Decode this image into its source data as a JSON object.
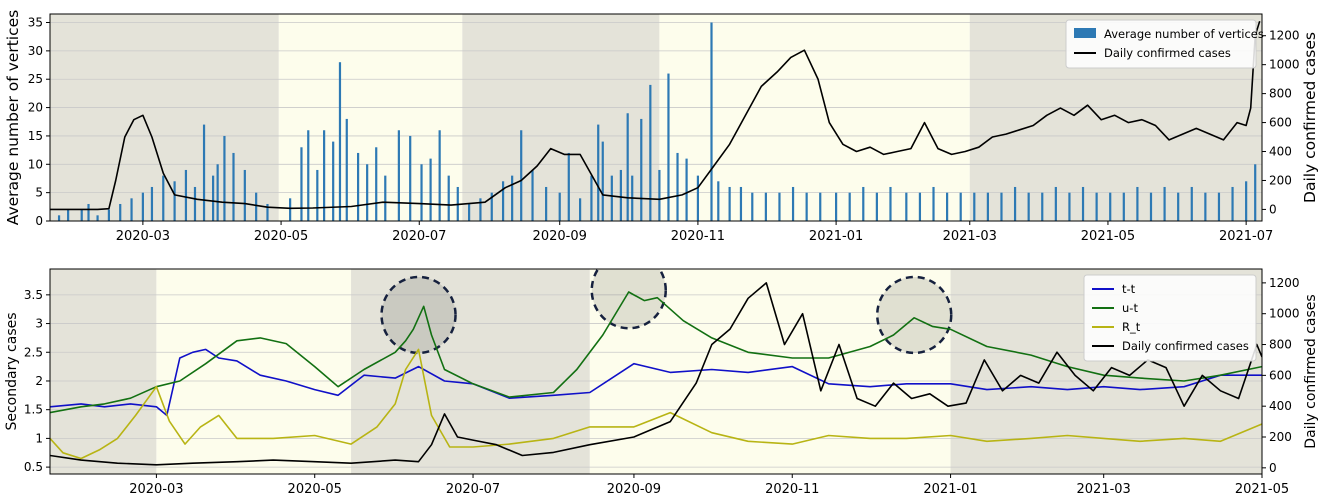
{
  "chart_data": [
    {
      "type": "bar",
      "title": "",
      "xlabel": "",
      "ylabel": "Average number of vertices",
      "ylabel_right": "Daily confirmed cases",
      "ylim": [
        0,
        36.5
      ],
      "ylim_right": [
        -80,
        1350
      ],
      "xlim": [
        "2020-01-20",
        "2021-07-08"
      ],
      "yticks": [
        0,
        5,
        10,
        15,
        20,
        25,
        30,
        35
      ],
      "yticks_right": [
        0,
        200,
        400,
        600,
        800,
        1000,
        1200
      ],
      "xticks": [
        "2020-03",
        "2020-05",
        "2020-07",
        "2020-09",
        "2020-11",
        "2021-01",
        "2021-03",
        "2021-05",
        "2021-07"
      ],
      "legend_position": "top-right",
      "shaded_periods": [
        {
          "start": "2020-01-20",
          "end": "2020-04-30",
          "color": "#e4e3d9"
        },
        {
          "start": "2020-04-30",
          "end": "2020-07-20",
          "color": "#fdfdec"
        },
        {
          "start": "2020-07-20",
          "end": "2020-10-15",
          "color": "#e4e3d9"
        },
        {
          "start": "2020-10-15",
          "end": "2021-03-01",
          "color": "#fdfdec"
        },
        {
          "start": "2021-03-01",
          "end": "2021-07-08",
          "color": "#e4e3d9"
        }
      ],
      "series": [
        {
          "name": "Average number of vertices",
          "kind": "bar",
          "color": "#2d79b4",
          "x": [
            "2020-01-24",
            "2020-01-28",
            "2020-02-03",
            "2020-02-06",
            "2020-02-10",
            "2020-02-15",
            "2020-02-20",
            "2020-02-25",
            "2020-03-01",
            "2020-03-05",
            "2020-03-10",
            "2020-03-15",
            "2020-03-20",
            "2020-03-24",
            "2020-03-28",
            "2020-04-01",
            "2020-04-03",
            "2020-04-06",
            "2020-04-10",
            "2020-04-15",
            "2020-04-20",
            "2020-04-25",
            "2020-05-05",
            "2020-05-10",
            "2020-05-13",
            "2020-05-17",
            "2020-05-20",
            "2020-05-24",
            "2020-05-27",
            "2020-05-30",
            "2020-06-04",
            "2020-06-08",
            "2020-06-12",
            "2020-06-16",
            "2020-06-22",
            "2020-06-27",
            "2020-07-02",
            "2020-07-06",
            "2020-07-10",
            "2020-07-14",
            "2020-07-18",
            "2020-07-23",
            "2020-07-28",
            "2020-08-02",
            "2020-08-07",
            "2020-08-11",
            "2020-08-15",
            "2020-08-20",
            "2020-08-26",
            "2020-09-01",
            "2020-09-05",
            "2020-09-10",
            "2020-09-15",
            "2020-09-18",
            "2020-09-20",
            "2020-09-24",
            "2020-09-28",
            "2020-10-01",
            "2020-10-03",
            "2020-10-07",
            "2020-10-11",
            "2020-10-15",
            "2020-10-19",
            "2020-10-23",
            "2020-10-27",
            "2020-11-01",
            "2020-11-07",
            "2020-11-10",
            "2020-11-15",
            "2020-11-20",
            "2020-11-25",
            "2020-12-01",
            "2020-12-07",
            "2020-12-13",
            "2020-12-19",
            "2020-12-25",
            "2021-01-01",
            "2021-01-07",
            "2021-01-13",
            "2021-01-19",
            "2021-01-25",
            "2021-02-01",
            "2021-02-07",
            "2021-02-13",
            "2021-02-19",
            "2021-02-25",
            "2021-03-03",
            "2021-03-09",
            "2021-03-15",
            "2021-03-21",
            "2021-03-27",
            "2021-04-02",
            "2021-04-08",
            "2021-04-14",
            "2021-04-20",
            "2021-04-26",
            "2021-05-02",
            "2021-05-08",
            "2021-05-14",
            "2021-05-20",
            "2021-05-26",
            "2021-06-01",
            "2021-06-07",
            "2021-06-13",
            "2021-06-19",
            "2021-06-25",
            "2021-07-01",
            "2021-07-05"
          ],
          "values": [
            1,
            2,
            2,
            3,
            1,
            2,
            3,
            4,
            5,
            6,
            8,
            7,
            9,
            6,
            17,
            8,
            10,
            15,
            12,
            9,
            5,
            3,
            4,
            13,
            16,
            9,
            16,
            14,
            28,
            18,
            12,
            10,
            13,
            8,
            16,
            15,
            10,
            11,
            16,
            8,
            6,
            3,
            4,
            5,
            7,
            8,
            16,
            9,
            6,
            5,
            12,
            4,
            8,
            17,
            14,
            8,
            9,
            19,
            8,
            18,
            24,
            9,
            26,
            12,
            11,
            8,
            35,
            7,
            6,
            6,
            5,
            5,
            5,
            6,
            5,
            5,
            5,
            5,
            6,
            5,
            6,
            5,
            5,
            6,
            5,
            5,
            5,
            5,
            5,
            6,
            5,
            5,
            6,
            5,
            6,
            5,
            5,
            5,
            6,
            5,
            6,
            5,
            6,
            5,
            5,
            6,
            7,
            10
          ]
        },
        {
          "name": "Daily confirmed cases",
          "kind": "line",
          "axis": "right",
          "color": "#000000",
          "x": [
            "2020-01-20",
            "2020-02-01",
            "2020-02-10",
            "2020-02-15",
            "2020-02-18",
            "2020-02-22",
            "2020-02-26",
            "2020-03-01",
            "2020-03-05",
            "2020-03-10",
            "2020-03-15",
            "2020-03-25",
            "2020-04-05",
            "2020-04-15",
            "2020-04-25",
            "2020-05-05",
            "2020-05-15",
            "2020-06-01",
            "2020-06-15",
            "2020-07-01",
            "2020-07-15",
            "2020-07-30",
            "2020-08-08",
            "2020-08-15",
            "2020-08-22",
            "2020-08-28",
            "2020-09-03",
            "2020-09-10",
            "2020-09-20",
            "2020-10-01",
            "2020-10-15",
            "2020-10-25",
            "2020-11-01",
            "2020-11-08",
            "2020-11-15",
            "2020-11-22",
            "2020-11-29",
            "2020-12-06",
            "2020-12-12",
            "2020-12-18",
            "2020-12-24",
            "2020-12-29",
            "2021-01-04",
            "2021-01-10",
            "2021-01-16",
            "2021-01-22",
            "2021-01-28",
            "2021-02-03",
            "2021-02-09",
            "2021-02-15",
            "2021-02-21",
            "2021-02-27",
            "2021-03-05",
            "2021-03-11",
            "2021-03-17",
            "2021-03-23",
            "2021-03-29",
            "2021-04-04",
            "2021-04-10",
            "2021-04-16",
            "2021-04-22",
            "2021-04-28",
            "2021-05-04",
            "2021-05-10",
            "2021-05-16",
            "2021-05-22",
            "2021-05-28",
            "2021-06-03",
            "2021-06-09",
            "2021-06-15",
            "2021-06-21",
            "2021-06-27",
            "2021-07-01",
            "2021-07-03",
            "2021-07-05",
            "2021-07-07"
          ],
          "values": [
            0,
            0,
            0,
            5,
            200,
            500,
            620,
            650,
            500,
            250,
            100,
            70,
            50,
            40,
            15,
            8,
            10,
            20,
            50,
            40,
            30,
            50,
            150,
            200,
            300,
            420,
            380,
            380,
            100,
            80,
            70,
            100,
            150,
            300,
            450,
            650,
            850,
            950,
            1050,
            1100,
            900,
            600,
            450,
            400,
            430,
            380,
            400,
            420,
            600,
            420,
            380,
            400,
            430,
            500,
            520,
            550,
            580,
            650,
            700,
            650,
            720,
            620,
            650,
            600,
            620,
            580,
            480,
            520,
            560,
            520,
            480,
            600,
            580,
            700,
            1200,
            1300
          ]
        }
      ]
    },
    {
      "type": "line",
      "title": "",
      "xlabel": "",
      "ylabel": "Secondary cases",
      "ylabel_right": "Daily confirmed cases",
      "ylim": [
        0.38,
        3.95
      ],
      "ylim_right": [
        -40,
        1290
      ],
      "xlim": [
        "2020-01-20",
        "2021-05-01"
      ],
      "yticks": [
        0.5,
        1.0,
        1.5,
        2.0,
        2.5,
        3.0,
        3.5
      ],
      "yticks_right": [
        0,
        200,
        400,
        600,
        800,
        1000,
        1200
      ],
      "xticks": [
        "2020-03",
        "2020-05",
        "2020-07",
        "2020-09",
        "2020-11",
        "2021-01",
        "2021-03",
        "2021-05"
      ],
      "legend_position": "top-right",
      "shaded_periods": [
        {
          "start": "2020-01-20",
          "end": "2020-03-01",
          "color": "#e4e3d9"
        },
        {
          "start": "2020-03-01",
          "end": "2020-05-15",
          "color": "#fdfdec"
        },
        {
          "start": "2020-05-15",
          "end": "2020-08-15",
          "color": "#e4e3d9"
        },
        {
          "start": "2020-08-15",
          "end": "2021-01-01",
          "color": "#fdfdec"
        },
        {
          "start": "2021-01-01",
          "end": "2021-05-01",
          "color": "#e4e3d9"
        }
      ],
      "highlights": [
        {
          "center_x": "2020-06-10",
          "center_y": 3.15,
          "color": "#2f2f2f"
        },
        {
          "center_x": "2020-08-30",
          "center_y": 3.58,
          "color": "#2f2f2f"
        },
        {
          "center_x": "2020-12-18",
          "center_y": 3.15,
          "color": "#2f2f2f"
        }
      ],
      "series": [
        {
          "name": "t-t",
          "color": "#1010c8",
          "x": [
            "2020-01-20",
            "2020-02-01",
            "2020-02-10",
            "2020-02-20",
            "2020-03-01",
            "2020-03-05",
            "2020-03-10",
            "2020-03-15",
            "2020-03-20",
            "2020-03-25",
            "2020-04-01",
            "2020-04-10",
            "2020-04-20",
            "2020-05-01",
            "2020-05-10",
            "2020-05-20",
            "2020-06-01",
            "2020-06-10",
            "2020-06-20",
            "2020-07-01",
            "2020-07-15",
            "2020-08-01",
            "2020-08-15",
            "2020-09-01",
            "2020-09-15",
            "2020-10-01",
            "2020-10-15",
            "2020-11-01",
            "2020-11-15",
            "2020-12-01",
            "2020-12-15",
            "2021-01-01",
            "2021-01-15",
            "2021-02-01",
            "2021-02-15",
            "2021-03-01",
            "2021-03-15",
            "2021-04-01",
            "2021-04-15",
            "2021-05-01"
          ],
          "values": [
            1.55,
            1.6,
            1.55,
            1.6,
            1.55,
            1.4,
            2.4,
            2.5,
            2.55,
            2.4,
            2.35,
            2.1,
            2.0,
            1.85,
            1.75,
            2.1,
            2.05,
            2.25,
            2.0,
            1.95,
            1.7,
            1.75,
            1.8,
            2.3,
            2.15,
            2.2,
            2.15,
            2.25,
            1.95,
            1.9,
            1.95,
            1.95,
            1.85,
            1.9,
            1.85,
            1.9,
            1.85,
            1.9,
            2.1,
            2.1
          ]
        },
        {
          "name": "u-t",
          "color": "#127012",
          "x": [
            "2020-01-20",
            "2020-02-01",
            "2020-02-10",
            "2020-02-20",
            "2020-03-01",
            "2020-03-10",
            "2020-03-20",
            "2020-04-01",
            "2020-04-10",
            "2020-04-20",
            "2020-05-01",
            "2020-05-10",
            "2020-05-20",
            "2020-06-01",
            "2020-06-05",
            "2020-06-08",
            "2020-06-12",
            "2020-06-15",
            "2020-06-20",
            "2020-07-01",
            "2020-07-15",
            "2020-08-01",
            "2020-08-10",
            "2020-08-20",
            "2020-08-30",
            "2020-09-05",
            "2020-09-10",
            "2020-09-20",
            "2020-10-01",
            "2020-10-15",
            "2020-11-01",
            "2020-11-15",
            "2020-12-01",
            "2020-12-10",
            "2020-12-18",
            "2020-12-25",
            "2021-01-01",
            "2021-01-15",
            "2021-02-01",
            "2021-02-15",
            "2021-03-01",
            "2021-03-15",
            "2021-04-01",
            "2021-04-15",
            "2021-05-01"
          ],
          "values": [
            1.45,
            1.55,
            1.6,
            1.7,
            1.9,
            2.0,
            2.3,
            2.7,
            2.75,
            2.65,
            2.25,
            1.9,
            2.2,
            2.5,
            2.7,
            2.9,
            3.3,
            2.8,
            2.2,
            1.95,
            1.72,
            1.8,
            2.2,
            2.8,
            3.55,
            3.4,
            3.45,
            3.05,
            2.75,
            2.5,
            2.4,
            2.4,
            2.6,
            2.8,
            3.1,
            2.95,
            2.9,
            2.6,
            2.45,
            2.25,
            2.1,
            2.05,
            2.0,
            2.1,
            2.25
          ]
        },
        {
          "name": "R_t",
          "color": "#b8b414",
          "x": [
            "2020-01-20",
            "2020-01-25",
            "2020-02-01",
            "2020-02-08",
            "2020-02-15",
            "2020-02-22",
            "2020-03-01",
            "2020-03-06",
            "2020-03-12",
            "2020-03-18",
            "2020-03-25",
            "2020-04-01",
            "2020-04-15",
            "2020-05-01",
            "2020-05-15",
            "2020-05-25",
            "2020-06-01",
            "2020-06-05",
            "2020-06-10",
            "2020-06-15",
            "2020-06-22",
            "2020-07-01",
            "2020-07-15",
            "2020-08-01",
            "2020-08-15",
            "2020-09-01",
            "2020-09-15",
            "2020-10-01",
            "2020-10-15",
            "2020-11-01",
            "2020-11-15",
            "2020-12-01",
            "2020-12-15",
            "2021-01-01",
            "2021-01-15",
            "2021-02-01",
            "2021-02-15",
            "2021-03-01",
            "2021-03-15",
            "2021-04-01",
            "2021-04-15",
            "2021-05-01"
          ],
          "values": [
            1.0,
            0.75,
            0.65,
            0.8,
            1.0,
            1.4,
            1.9,
            1.3,
            0.9,
            1.2,
            1.4,
            1.0,
            1.0,
            1.05,
            0.9,
            1.2,
            1.6,
            2.2,
            2.55,
            1.4,
            0.85,
            0.85,
            0.9,
            1.0,
            1.2,
            1.2,
            1.45,
            1.1,
            0.95,
            0.9,
            1.05,
            1.0,
            1.0,
            1.05,
            0.95,
            1.0,
            1.05,
            1.0,
            0.95,
            1.0,
            0.95,
            1.25
          ]
        },
        {
          "name": "Daily confirmed cases",
          "axis": "right",
          "color": "#000000",
          "x": [
            "2020-01-20",
            "2020-02-01",
            "2020-02-15",
            "2020-03-01",
            "2020-03-15",
            "2020-04-01",
            "2020-04-15",
            "2020-05-01",
            "2020-05-15",
            "2020-06-01",
            "2020-06-10",
            "2020-06-15",
            "2020-06-20",
            "2020-06-25",
            "2020-07-01",
            "2020-07-10",
            "2020-07-20",
            "2020-08-01",
            "2020-08-15",
            "2020-09-01",
            "2020-09-15",
            "2020-09-25",
            "2020-10-01",
            "2020-10-08",
            "2020-10-15",
            "2020-10-22",
            "2020-10-29",
            "2020-11-05",
            "2020-11-12",
            "2020-11-19",
            "2020-11-26",
            "2020-12-03",
            "2020-12-10",
            "2020-12-17",
            "2020-12-24",
            "2020-12-31",
            "2021-01-07",
            "2021-01-14",
            "2021-01-21",
            "2021-01-28",
            "2021-02-04",
            "2021-02-11",
            "2021-02-18",
            "2021-02-25",
            "2021-03-04",
            "2021-03-11",
            "2021-03-18",
            "2021-03-25",
            "2021-04-01",
            "2021-04-08",
            "2021-04-15",
            "2021-04-22",
            "2021-04-29",
            "2021-05-01"
          ],
          "values": [
            80,
            50,
            30,
            20,
            30,
            40,
            50,
            40,
            30,
            50,
            40,
            150,
            350,
            200,
            180,
            150,
            80,
            100,
            150,
            200,
            300,
            550,
            800,
            900,
            1100,
            1200,
            800,
            1000,
            500,
            800,
            450,
            400,
            550,
            450,
            480,
            400,
            420,
            700,
            500,
            600,
            550,
            750,
            600,
            500,
            650,
            600,
            700,
            650,
            400,
            600,
            500,
            450,
            800,
            720
          ]
        }
      ]
    }
  ]
}
